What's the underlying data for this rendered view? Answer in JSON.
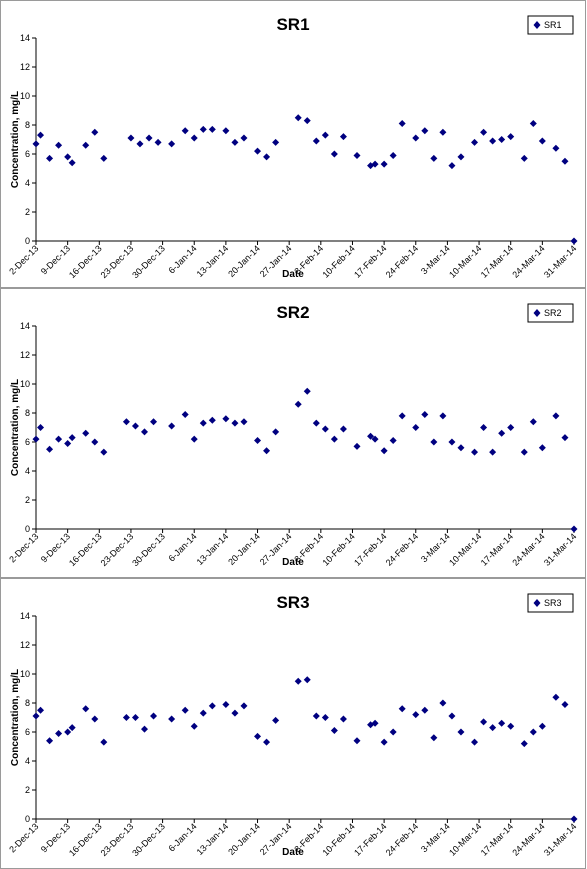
{
  "chart_data": [
    {
      "type": "scatter",
      "title": "SR1",
      "xlabel": "Date",
      "ylabel": "Concentration, mg/L",
      "ylim": [
        0,
        14
      ],
      "y_ticks": [
        "0",
        "2",
        "4",
        "6",
        "8",
        "10",
        "12",
        "14"
      ],
      "x_ticks": [
        "2-Dec-13",
        "9-Dec-13",
        "16-Dec-13",
        "23-Dec-13",
        "30-Dec-13",
        "6-Jan-14",
        "13-Jan-14",
        "20-Jan-14",
        "27-Jan-14",
        "3-Feb-14",
        "10-Feb-14",
        "17-Feb-14",
        "24-Feb-14",
        "3-Mar-14",
        "10-Mar-14",
        "17-Mar-14",
        "24-Mar-14",
        "31-Mar-14"
      ],
      "grid": false,
      "legend_position": "top-right",
      "marker_color": "#000080",
      "series": [
        {
          "name": "SR1",
          "x": [
            "2-Dec-13",
            "3-Dec-13",
            "5-Dec-13",
            "7-Dec-13",
            "9-Dec-13",
            "10-Dec-13",
            "13-Dec-13",
            "15-Dec-13",
            "17-Dec-13",
            "23-Dec-13",
            "25-Dec-13",
            "27-Dec-13",
            "29-Dec-13",
            "1-Jan-14",
            "4-Jan-14",
            "6-Jan-14",
            "8-Jan-14",
            "10-Jan-14",
            "13-Jan-14",
            "15-Jan-14",
            "17-Jan-14",
            "20-Jan-14",
            "22-Jan-14",
            "24-Jan-14",
            "29-Jan-14",
            "31-Jan-14",
            "2-Feb-14",
            "4-Feb-14",
            "6-Feb-14",
            "8-Feb-14",
            "11-Feb-14",
            "14-Feb-14",
            "15-Feb-14",
            "17-Feb-14",
            "19-Feb-14",
            "21-Feb-14",
            "24-Feb-14",
            "26-Feb-14",
            "28-Feb-14",
            "2-Mar-14",
            "4-Mar-14",
            "6-Mar-14",
            "9-Mar-14",
            "11-Mar-14",
            "13-Mar-14",
            "15-Mar-14",
            "17-Mar-14",
            "20-Mar-14",
            "22-Mar-14",
            "24-Mar-14",
            "27-Mar-14",
            "29-Mar-14",
            "31-Mar-14"
          ],
          "values": [
            6.7,
            7.3,
            5.7,
            6.6,
            5.8,
            5.4,
            6.6,
            7.5,
            5.7,
            7.1,
            6.7,
            7.1,
            6.8,
            6.7,
            7.6,
            7.1,
            7.7,
            7.7,
            7.6,
            6.8,
            7.1,
            6.2,
            5.8,
            6.8,
            8.5,
            8.3,
            6.9,
            7.3,
            6.0,
            7.2,
            5.9,
            5.2,
            5.3,
            5.3,
            5.9,
            8.1,
            7.1,
            7.6,
            5.7,
            7.5,
            5.2,
            5.8,
            6.8,
            7.5,
            6.9,
            7.0,
            7.2,
            5.7,
            8.1,
            6.9,
            6.4,
            5.5,
            0
          ]
        }
      ]
    },
    {
      "type": "scatter",
      "title": "SR2",
      "xlabel": "Date",
      "ylabel": "Concentration, mg/L",
      "ylim": [
        0,
        14
      ],
      "y_ticks": [
        "0",
        "2",
        "4",
        "6",
        "8",
        "10",
        "12",
        "14"
      ],
      "x_ticks": [
        "2-Dec-13",
        "9-Dec-13",
        "16-Dec-13",
        "23-Dec-13",
        "30-Dec-13",
        "6-Jan-14",
        "13-Jan-14",
        "20-Jan-14",
        "27-Jan-14",
        "3-Feb-14",
        "10-Feb-14",
        "17-Feb-14",
        "24-Feb-14",
        "3-Mar-14",
        "10-Mar-14",
        "17-Mar-14",
        "24-Mar-14",
        "31-Mar-14"
      ],
      "grid": false,
      "legend_position": "top-right",
      "marker_color": "#000080",
      "series": [
        {
          "name": "SR2",
          "x": [
            "2-Dec-13",
            "3-Dec-13",
            "5-Dec-13",
            "7-Dec-13",
            "9-Dec-13",
            "10-Dec-13",
            "13-Dec-13",
            "15-Dec-13",
            "17-Dec-13",
            "22-Dec-13",
            "24-Dec-13",
            "26-Dec-13",
            "28-Dec-13",
            "1-Jan-14",
            "4-Jan-14",
            "6-Jan-14",
            "8-Jan-14",
            "10-Jan-14",
            "13-Jan-14",
            "15-Jan-14",
            "17-Jan-14",
            "20-Jan-14",
            "22-Jan-14",
            "24-Jan-14",
            "29-Jan-14",
            "31-Jan-14",
            "2-Feb-14",
            "4-Feb-14",
            "6-Feb-14",
            "8-Feb-14",
            "11-Feb-14",
            "14-Feb-14",
            "15-Feb-14",
            "17-Feb-14",
            "19-Feb-14",
            "21-Feb-14",
            "24-Feb-14",
            "26-Feb-14",
            "28-Feb-14",
            "2-Mar-14",
            "4-Mar-14",
            "6-Mar-14",
            "9-Mar-14",
            "11-Mar-14",
            "13-Mar-14",
            "15-Mar-14",
            "17-Mar-14",
            "20-Mar-14",
            "22-Mar-14",
            "24-Mar-14",
            "27-Mar-14",
            "29-Mar-14",
            "31-Mar-14"
          ],
          "values": [
            6.2,
            7.0,
            5.5,
            6.2,
            5.9,
            6.3,
            6.6,
            6.0,
            5.3,
            7.4,
            7.1,
            6.7,
            7.4,
            7.1,
            7.9,
            6.2,
            7.3,
            7.5,
            7.6,
            7.3,
            7.4,
            6.1,
            5.4,
            6.7,
            8.6,
            9.5,
            7.3,
            6.9,
            6.2,
            6.9,
            5.7,
            6.4,
            6.2,
            5.4,
            6.1,
            7.8,
            7.0,
            7.9,
            6.0,
            7.8,
            6.0,
            5.6,
            5.3,
            7.0,
            5.3,
            6.6,
            7.0,
            5.3,
            7.4,
            5.6,
            7.8,
            6.3,
            0
          ]
        }
      ]
    },
    {
      "type": "scatter",
      "title": "SR3",
      "xlabel": "Date",
      "ylabel": "Concentration, mg/L",
      "ylim": [
        0,
        14
      ],
      "y_ticks": [
        "0",
        "2",
        "4",
        "6",
        "8",
        "10",
        "12",
        "14"
      ],
      "x_ticks": [
        "2-Dec-13",
        "9-Dec-13",
        "16-Dec-13",
        "23-Dec-13",
        "30-Dec-13",
        "6-Jan-14",
        "13-Jan-14",
        "20-Jan-14",
        "27-Jan-14",
        "3-Feb-14",
        "10-Feb-14",
        "17-Feb-14",
        "24-Feb-14",
        "3-Mar-14",
        "10-Mar-14",
        "17-Mar-14",
        "24-Mar-14",
        "31-Mar-14"
      ],
      "grid": false,
      "legend_position": "top-right",
      "marker_color": "#000080",
      "series": [
        {
          "name": "SR3",
          "x": [
            "2-Dec-13",
            "3-Dec-13",
            "5-Dec-13",
            "7-Dec-13",
            "9-Dec-13",
            "10-Dec-13",
            "13-Dec-13",
            "15-Dec-13",
            "17-Dec-13",
            "22-Dec-13",
            "24-Dec-13",
            "26-Dec-13",
            "28-Dec-13",
            "1-Jan-14",
            "4-Jan-14",
            "6-Jan-14",
            "8-Jan-14",
            "10-Jan-14",
            "13-Jan-14",
            "15-Jan-14",
            "17-Jan-14",
            "20-Jan-14",
            "22-Jan-14",
            "24-Jan-14",
            "29-Jan-14",
            "31-Jan-14",
            "2-Feb-14",
            "4-Feb-14",
            "6-Feb-14",
            "8-Feb-14",
            "11-Feb-14",
            "14-Feb-14",
            "15-Feb-14",
            "17-Feb-14",
            "19-Feb-14",
            "21-Feb-14",
            "24-Feb-14",
            "26-Feb-14",
            "28-Feb-14",
            "2-Mar-14",
            "4-Mar-14",
            "6-Mar-14",
            "9-Mar-14",
            "11-Mar-14",
            "13-Mar-14",
            "15-Mar-14",
            "17-Mar-14",
            "20-Mar-14",
            "22-Mar-14",
            "24-Mar-14",
            "27-Mar-14",
            "29-Mar-14",
            "31-Mar-14"
          ],
          "values": [
            7.1,
            7.5,
            5.4,
            5.9,
            6.0,
            6.3,
            7.6,
            6.9,
            5.3,
            7.0,
            7.0,
            6.2,
            7.1,
            6.9,
            7.5,
            6.4,
            7.3,
            7.8,
            7.9,
            7.3,
            7.8,
            5.7,
            5.3,
            6.8,
            9.5,
            9.6,
            7.1,
            7.0,
            6.1,
            6.9,
            5.4,
            6.5,
            6.6,
            5.3,
            6.0,
            7.6,
            7.2,
            7.5,
            5.6,
            8.0,
            7.1,
            6.0,
            5.3,
            6.7,
            6.3,
            6.6,
            6.4,
            5.2,
            6.0,
            6.4,
            8.4,
            7.9,
            0
          ]
        }
      ]
    }
  ]
}
